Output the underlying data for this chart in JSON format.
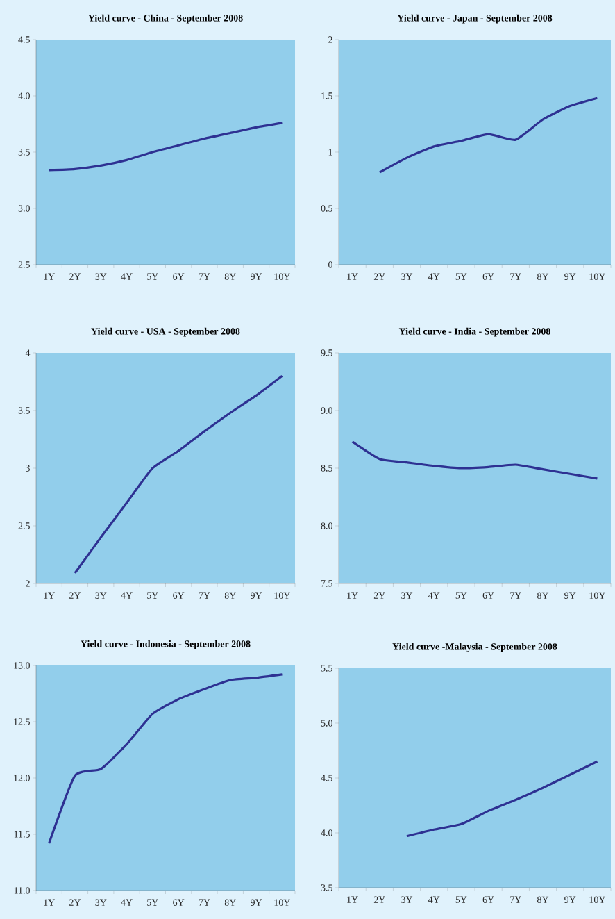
{
  "chart_data": [
    {
      "type": "line",
      "title": "Yield curve - China - September 2008",
      "categories": [
        "1Y",
        "2Y",
        "3Y",
        "4Y",
        "5Y",
        "6Y",
        "7Y",
        "8Y",
        "9Y",
        "10Y"
      ],
      "values": [
        3.34,
        3.35,
        3.38,
        3.43,
        3.5,
        3.56,
        3.62,
        3.67,
        3.72,
        3.76
      ],
      "color": "#2e3192",
      "ylim": [
        2.5,
        4.5
      ],
      "yticks": [
        2.5,
        {
          "value": 3,
          "label": "3.0"
        },
        3.5,
        {
          "value": 4,
          "label": "4.0"
        },
        4.5
      ]
    },
    {
      "type": "line",
      "title": "Yield curve - Japan - September 2008",
      "categories": [
        "1Y",
        "2Y",
        "3Y",
        "4Y",
        "5Y",
        "6Y",
        "7Y",
        "8Y",
        "9Y",
        "10Y"
      ],
      "values": [
        null,
        0.82,
        0.95,
        1.05,
        1.1,
        1.16,
        1.11,
        1.29,
        1.41,
        1.48
      ],
      "color": "#2e3192",
      "ylim": [
        0,
        2
      ],
      "yticks": [
        0,
        0.5,
        1,
        1.5,
        2
      ]
    },
    {
      "type": "line",
      "title": "Yield curve - USA - September 2008",
      "categories": [
        "1Y",
        "2Y",
        "3Y",
        "4Y",
        "5Y",
        "6Y",
        "7Y",
        "8Y",
        "9Y",
        "10Y"
      ],
      "values": [
        null,
        2.09,
        2.4,
        2.7,
        3.0,
        3.15,
        3.32,
        3.48,
        3.63,
        3.8
      ],
      "color": "#2e3192",
      "ylim": [
        2,
        4
      ],
      "yticks": [
        2,
        2.5,
        3,
        3.5,
        4
      ]
    },
    {
      "type": "line",
      "title": "Yield curve - India - September 2008",
      "categories": [
        "1Y",
        "2Y",
        "3Y",
        "4Y",
        "5Y",
        "6Y",
        "7Y",
        "8Y",
        "9Y",
        "10Y"
      ],
      "values": [
        8.73,
        8.58,
        8.55,
        8.52,
        8.5,
        8.51,
        8.53,
        8.49,
        8.45,
        8.41
      ],
      "color": "#2e3192",
      "ylim": [
        7.5,
        9.5
      ],
      "yticks": [
        7.5,
        {
          "value": 8,
          "label": "8.0"
        },
        8.5,
        {
          "value": 9,
          "label": "9.0"
        },
        9.5
      ]
    },
    {
      "type": "line",
      "title": "Yield curve - Indonesia - September 2008",
      "categories": [
        "1Y",
        "2Y",
        "3Y",
        "4Y",
        "5Y",
        "6Y",
        "7Y",
        "8Y",
        "9Y",
        "10Y"
      ],
      "values": [
        11.42,
        12.02,
        12.08,
        12.3,
        12.57,
        12.7,
        12.79,
        12.87,
        12.89,
        12.92
      ],
      "color": "#2e3192",
      "ylim": [
        11,
        13
      ],
      "yticks": [
        {
          "value": 11,
          "label": "11.0"
        },
        11.5,
        {
          "value": 12,
          "label": "12.0"
        },
        12.5,
        {
          "value": 13,
          "label": "13.0"
        }
      ]
    },
    {
      "type": "line",
      "title": "Yield curve -Malaysia - September 2008",
      "categories": [
        "1Y",
        "2Y",
        "3Y",
        "4Y",
        "5Y",
        "6Y",
        "7Y",
        "8Y",
        "9Y",
        "10Y"
      ],
      "values": [
        null,
        null,
        3.97,
        4.03,
        4.08,
        4.2,
        4.3,
        4.41,
        4.53,
        4.65
      ],
      "color": "#2e3192",
      "ylim": [
        3.5,
        5.5
      ],
      "yticks": [
        3.5,
        {
          "value": 4,
          "label": "4.0"
        },
        4.5,
        {
          "value": 5,
          "label": "5.0"
        },
        5.5
      ]
    }
  ]
}
